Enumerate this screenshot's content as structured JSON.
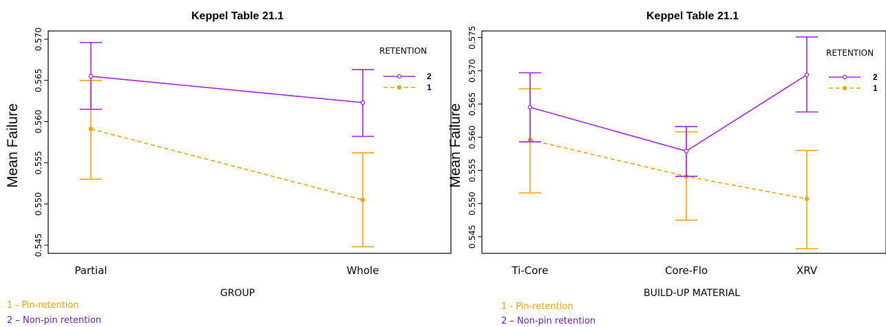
{
  "colors": {
    "series_2": "#a020f0",
    "series_1": "#f5a300",
    "note_1": "#f5a300",
    "note_2": "#6a1fa5"
  },
  "chart_data": [
    {
      "type": "line",
      "title": "Keppel Table 21.1",
      "xlabel": "GROUP",
      "ylabel": "Mean Failure",
      "categories": [
        "Partial",
        "Whole"
      ],
      "ylim": [
        0.544,
        0.571
      ],
      "yticks": [
        "0.545",
        "0.550",
        "0.555",
        "0.560",
        "0.565",
        "0.570"
      ],
      "legend": {
        "title": "RETENTION",
        "position": "top-right"
      },
      "series": [
        {
          "name": "2",
          "values": [
            0.5655,
            0.5623
          ],
          "lower": [
            0.5615,
            0.5582
          ],
          "upper": [
            0.5696,
            0.5663
          ],
          "style": "solid"
        },
        {
          "name": "1",
          "values": [
            0.5591,
            0.5505
          ],
          "lower": [
            0.553,
            0.5448
          ],
          "upper": [
            0.565,
            0.5562
          ],
          "style": "dashed"
        }
      ],
      "notes": [
        "1 -  Pin-retention",
        "2 – Non-pin retention"
      ]
    },
    {
      "type": "line",
      "title": "Keppel Table 21.1",
      "xlabel": "BUILD-UP MATERIAL",
      "ylabel": "Mean Failure",
      "categories": [
        "Ti-Core",
        "Core-Flo",
        "XRV"
      ],
      "ylim": [
        0.5425,
        0.576
      ],
      "yticks": [
        "0.545",
        "0.550",
        "0.555",
        "0.560",
        "0.565",
        "0.570",
        "0.575"
      ],
      "legend": {
        "title": "RETENTION",
        "position": "top-right"
      },
      "series": [
        {
          "name": "2",
          "values": [
            0.5645,
            0.5579,
            0.5694
          ],
          "lower": [
            0.5593,
            0.5541,
            0.5638
          ],
          "upper": [
            0.5697,
            0.5616,
            0.5751
          ],
          "style": "solid"
        },
        {
          "name": "1",
          "values": [
            0.5596,
            0.5541,
            0.5507
          ],
          "lower": [
            0.5516,
            0.5475,
            0.5432
          ],
          "upper": [
            0.5673,
            0.5608,
            0.558
          ],
          "style": "dashed"
        }
      ],
      "notes": [
        "1 -  Pin-retention",
        "2 – Non-pin retention"
      ]
    }
  ]
}
